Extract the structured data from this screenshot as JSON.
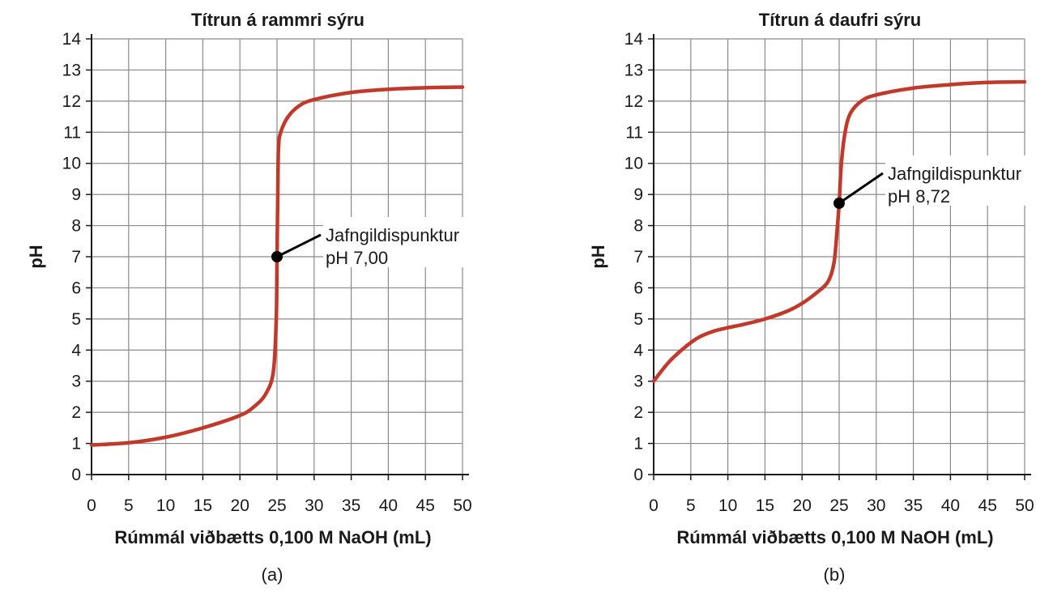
{
  "colors": {
    "curve": "#c0392b",
    "grid": "#8a8a8a",
    "axis": "#1a1a1a",
    "point": "#000000"
  },
  "chart_data": [
    {
      "type": "line",
      "panel_label": "(a)",
      "title": "Títrun á rammri sýru",
      "xlabel": "Rúmmál viðbætts 0,100 M NaOH (mL)",
      "ylabel": "pH",
      "xlim": [
        0,
        50
      ],
      "ylim": [
        0,
        14
      ],
      "xticks": [
        0,
        5,
        10,
        15,
        20,
        25,
        30,
        35,
        40,
        45,
        50
      ],
      "yticks": [
        0,
        1,
        2,
        3,
        4,
        5,
        6,
        7,
        8,
        9,
        10,
        11,
        12,
        13,
        14
      ],
      "grid": true,
      "series": [
        {
          "x": [
            0,
            5,
            10,
            15,
            20,
            22,
            23.5,
            24.5,
            24.9,
            25,
            25.1,
            25.2,
            25.5,
            26.5,
            28,
            30,
            35,
            40,
            45,
            50
          ],
          "y": [
            0.95,
            1.02,
            1.2,
            1.5,
            1.9,
            2.2,
            2.6,
            3.3,
            5.0,
            7.0,
            9.0,
            10.5,
            11.0,
            11.5,
            11.85,
            12.05,
            12.28,
            12.38,
            12.43,
            12.45
          ]
        }
      ],
      "annotation": {
        "x": 25,
        "y": 7.0,
        "line1": "Jafngildispunktur",
        "line2": "pH 7,00"
      }
    },
    {
      "type": "line",
      "panel_label": "(b)",
      "title": "Títrun á daufri sýru",
      "xlabel": "Rúmmál viðbætts 0,100 M NaOH (mL)",
      "ylabel": "pH",
      "xlim": [
        0,
        50
      ],
      "ylim": [
        0,
        14
      ],
      "xticks": [
        0,
        5,
        10,
        15,
        20,
        25,
        30,
        35,
        40,
        45,
        50
      ],
      "yticks": [
        0,
        1,
        2,
        3,
        4,
        5,
        6,
        7,
        8,
        9,
        10,
        11,
        12,
        13,
        14
      ],
      "grid": true,
      "series": [
        {
          "x": [
            0,
            2,
            4,
            6,
            8,
            10,
            12,
            15,
            18,
            20,
            22,
            23.5,
            24.3,
            24.7,
            25,
            25.3,
            25.8,
            26.5,
            28,
            30,
            35,
            40,
            45,
            50
          ],
          "y": [
            3.0,
            3.6,
            4.05,
            4.4,
            4.6,
            4.72,
            4.82,
            5.0,
            5.25,
            5.5,
            5.85,
            6.2,
            6.8,
            7.8,
            8.72,
            10.0,
            11.0,
            11.6,
            12.0,
            12.2,
            12.42,
            12.53,
            12.6,
            12.62
          ]
        }
      ],
      "annotation": {
        "x": 25,
        "y": 8.72,
        "line1": "Jafngildispunktur",
        "line2": "pH 8,72"
      }
    }
  ]
}
